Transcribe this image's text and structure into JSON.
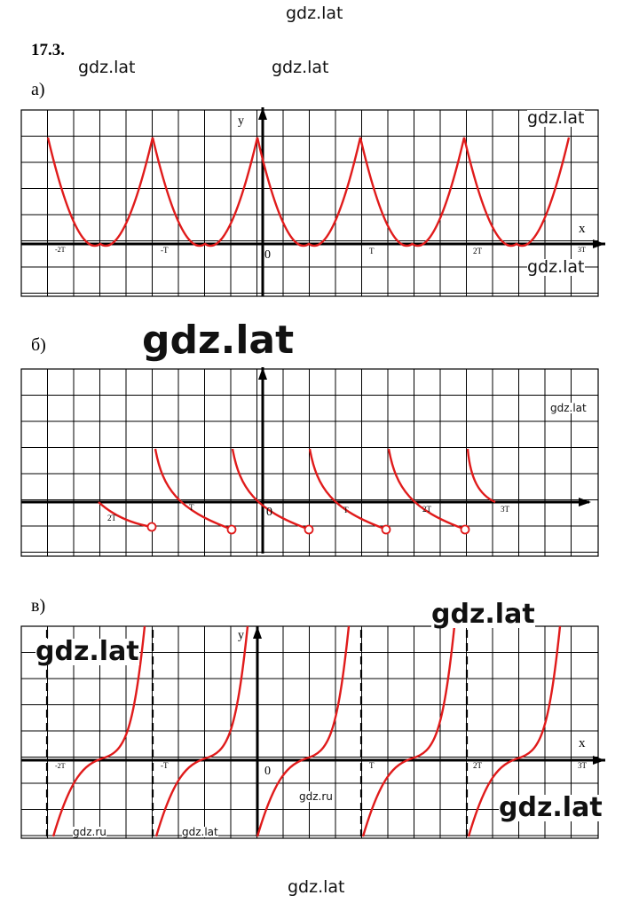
{
  "watermarks": {
    "top": "gdz.lat",
    "header_left": "gdz.lat",
    "header_center": "gdz.lat",
    "graph_a_right_top": "gdz.lat",
    "graph_a_right_bottom": "gdz.lat",
    "graph_b_big": "gdz.lat",
    "graph_b_inside": "gdz.lat",
    "graph_c_right": "gdz.lat",
    "graph_c_left": "gdz.lat",
    "graph_c_right_bottom": "gdz.lat",
    "graph_c_ru_center": "gdz.ru",
    "graph_c_ru_left": "gdz.ru",
    "graph_c_small": "gdz.lat",
    "bottom": "gdz.lat"
  },
  "problem_number": "17.3.",
  "parts": {
    "a": "а)",
    "b": "б)",
    "c": "в)"
  },
  "graph_a": {
    "y_label": "y",
    "x_label": "x",
    "origin": "0",
    "ticks": [
      "-2T",
      "-T",
      "T",
      "2T",
      "3T"
    ],
    "color": "#e01b1b"
  },
  "graph_b": {
    "origin": "0",
    "ticks": [
      "2T",
      "T",
      "T",
      "2T",
      "3T"
    ],
    "color": "#e01b1b"
  },
  "graph_c": {
    "y_label": "y",
    "x_label": "x",
    "origin": "0",
    "ticks": [
      "-2T",
      "-T",
      "T",
      "2T",
      "3T"
    ],
    "color": "#e01b1b"
  }
}
